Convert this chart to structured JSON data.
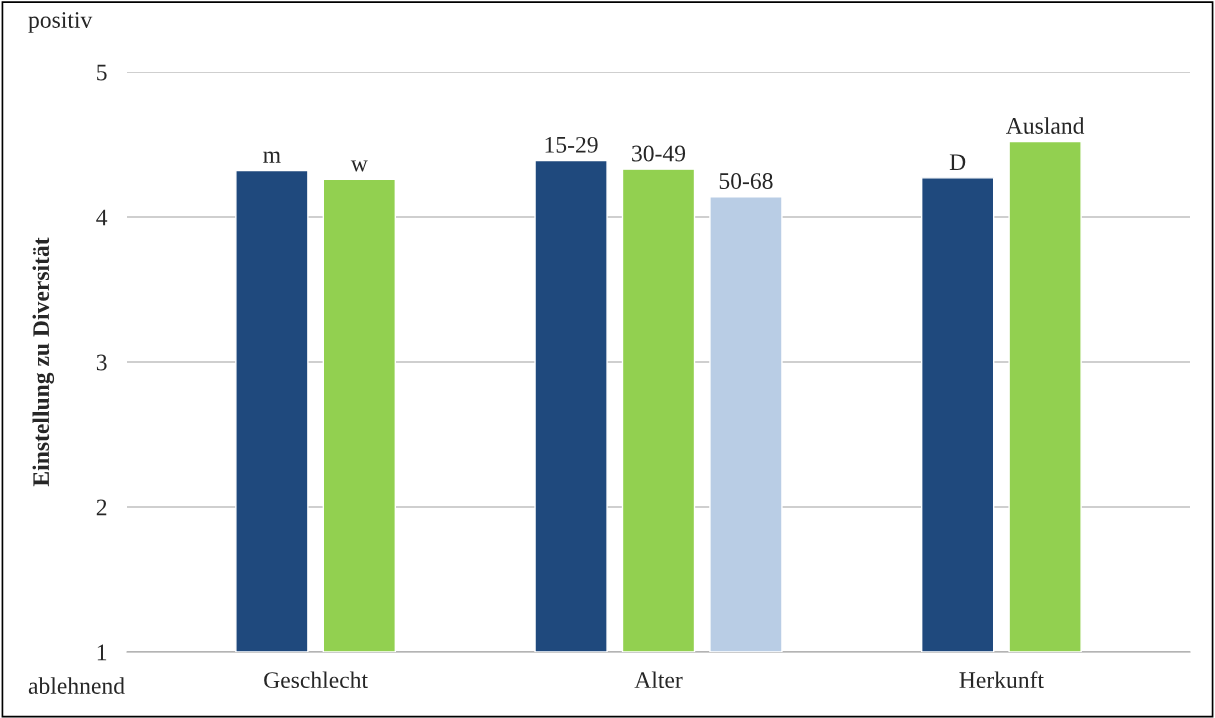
{
  "chart_data": {
    "type": "bar",
    "ylabel": "Einstellung zu Diversität",
    "categories": [
      "Geschlecht",
      "Alter",
      "Herkunft"
    ],
    "series": [
      {
        "color": "#1f497d",
        "values": [
          4.32,
          4.39,
          4.27
        ],
        "value_labels": [
          "m",
          "15-29",
          "D"
        ]
      },
      {
        "color": "#92d050",
        "values": [
          4.26,
          4.33,
          4.52
        ],
        "value_labels": [
          "w",
          "30-49",
          "Ausland"
        ]
      },
      {
        "color": "#b9cde5",
        "values": [
          null,
          4.14,
          null
        ],
        "value_labels": [
          null,
          "50-68",
          null
        ]
      }
    ],
    "ylim": [
      1,
      5
    ],
    "yticks": [
      1,
      2,
      3,
      4,
      5
    ],
    "grid": "y",
    "legend": false,
    "annotations": [
      "positiv",
      "ablehnend"
    ]
  }
}
